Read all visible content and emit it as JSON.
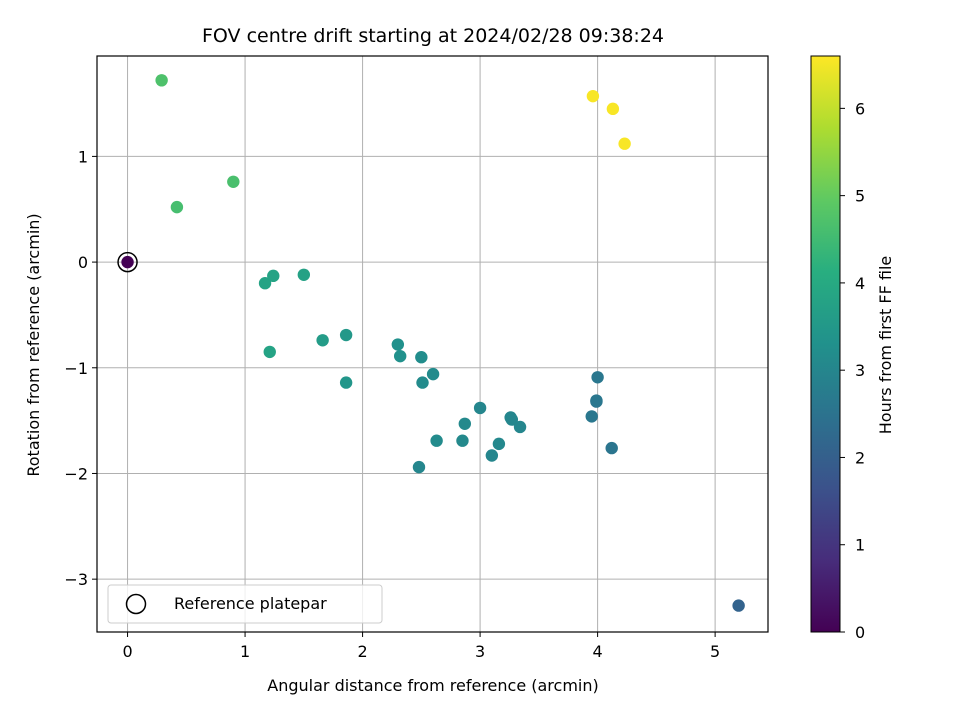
{
  "chart_data": {
    "type": "scatter",
    "title": "FOV centre drift starting at 2024/02/28 09:38:24",
    "xlabel": "Angular distance from reference (arcmin)",
    "ylabel": "Rotation from reference (arcmin)",
    "xlim": [
      -0.26,
      5.45
    ],
    "ylim": [
      -3.5,
      1.95
    ],
    "grid": true,
    "x_ticks": [
      0,
      1,
      2,
      3,
      4,
      5
    ],
    "y_ticks": [
      1,
      0,
      -1,
      -2,
      -3
    ],
    "x_tick_labels": [
      "0",
      "1",
      "2",
      "3",
      "4",
      "5"
    ],
    "y_tick_labels": [
      "1",
      "0",
      "−1",
      "−2",
      "−3"
    ],
    "colormap": "viridis",
    "colorbar": {
      "label": "Hours from first FF file",
      "range": [
        0,
        6.6
      ],
      "ticks": [
        0,
        1,
        2,
        3,
        4,
        5,
        6
      ],
      "tick_labels": [
        "0",
        "1",
        "2",
        "3",
        "4",
        "5",
        "6"
      ]
    },
    "points": [
      {
        "x": 0.0,
        "y": 0.0,
        "hours": 0.0
      },
      {
        "x": 5.2,
        "y": -3.25,
        "hours": 2.1
      },
      {
        "x": 3.99,
        "y": -1.32,
        "hours": 2.55
      },
      {
        "x": 4.0,
        "y": -1.09,
        "hours": 2.6
      },
      {
        "x": 3.95,
        "y": -1.46,
        "hours": 2.6
      },
      {
        "x": 4.12,
        "y": -1.76,
        "hours": 2.55
      },
      {
        "x": 3.99,
        "y": -1.31,
        "hours": 2.6
      },
      {
        "x": 2.48,
        "y": -1.94,
        "hours": 3.0
      },
      {
        "x": 3.0,
        "y": -1.38,
        "hours": 3.0
      },
      {
        "x": 3.1,
        "y": -1.83,
        "hours": 3.0
      },
      {
        "x": 3.16,
        "y": -1.72,
        "hours": 3.05
      },
      {
        "x": 3.26,
        "y": -1.47,
        "hours": 3.0
      },
      {
        "x": 3.27,
        "y": -1.49,
        "hours": 3.0
      },
      {
        "x": 3.34,
        "y": -1.56,
        "hours": 3.0
      },
      {
        "x": 2.87,
        "y": -1.53,
        "hours": 3.1
      },
      {
        "x": 2.85,
        "y": -1.69,
        "hours": 3.1
      },
      {
        "x": 2.63,
        "y": -1.69,
        "hours": 3.15
      },
      {
        "x": 2.51,
        "y": -1.14,
        "hours": 3.15
      },
      {
        "x": 2.5,
        "y": -0.9,
        "hours": 3.2
      },
      {
        "x": 2.6,
        "y": -1.06,
        "hours": 3.15
      },
      {
        "x": 2.3,
        "y": -0.78,
        "hours": 3.3
      },
      {
        "x": 2.32,
        "y": -0.89,
        "hours": 3.3
      },
      {
        "x": 1.86,
        "y": -1.14,
        "hours": 3.45
      },
      {
        "x": 1.86,
        "y": -0.69,
        "hours": 3.5
      },
      {
        "x": 1.66,
        "y": -0.74,
        "hours": 3.6
      },
      {
        "x": 1.5,
        "y": -0.12,
        "hours": 3.75
      },
      {
        "x": 1.21,
        "y": -0.85,
        "hours": 3.8
      },
      {
        "x": 1.17,
        "y": -0.2,
        "hours": 3.8
      },
      {
        "x": 1.24,
        "y": -0.13,
        "hours": 3.8
      },
      {
        "x": 0.42,
        "y": 0.52,
        "hours": 4.6
      },
      {
        "x": 0.9,
        "y": 0.76,
        "hours": 4.65
      },
      {
        "x": 0.29,
        "y": 1.72,
        "hours": 4.7
      },
      {
        "x": 3.96,
        "y": 1.57,
        "hours": 6.55
      },
      {
        "x": 4.13,
        "y": 1.45,
        "hours": 6.55
      },
      {
        "x": 4.23,
        "y": 1.12,
        "hours": 6.55
      }
    ],
    "reference_marker": {
      "x": 0.0,
      "y": 0.0
    },
    "legend": {
      "location": "lower-left",
      "entries": [
        "Reference platepar"
      ]
    }
  }
}
